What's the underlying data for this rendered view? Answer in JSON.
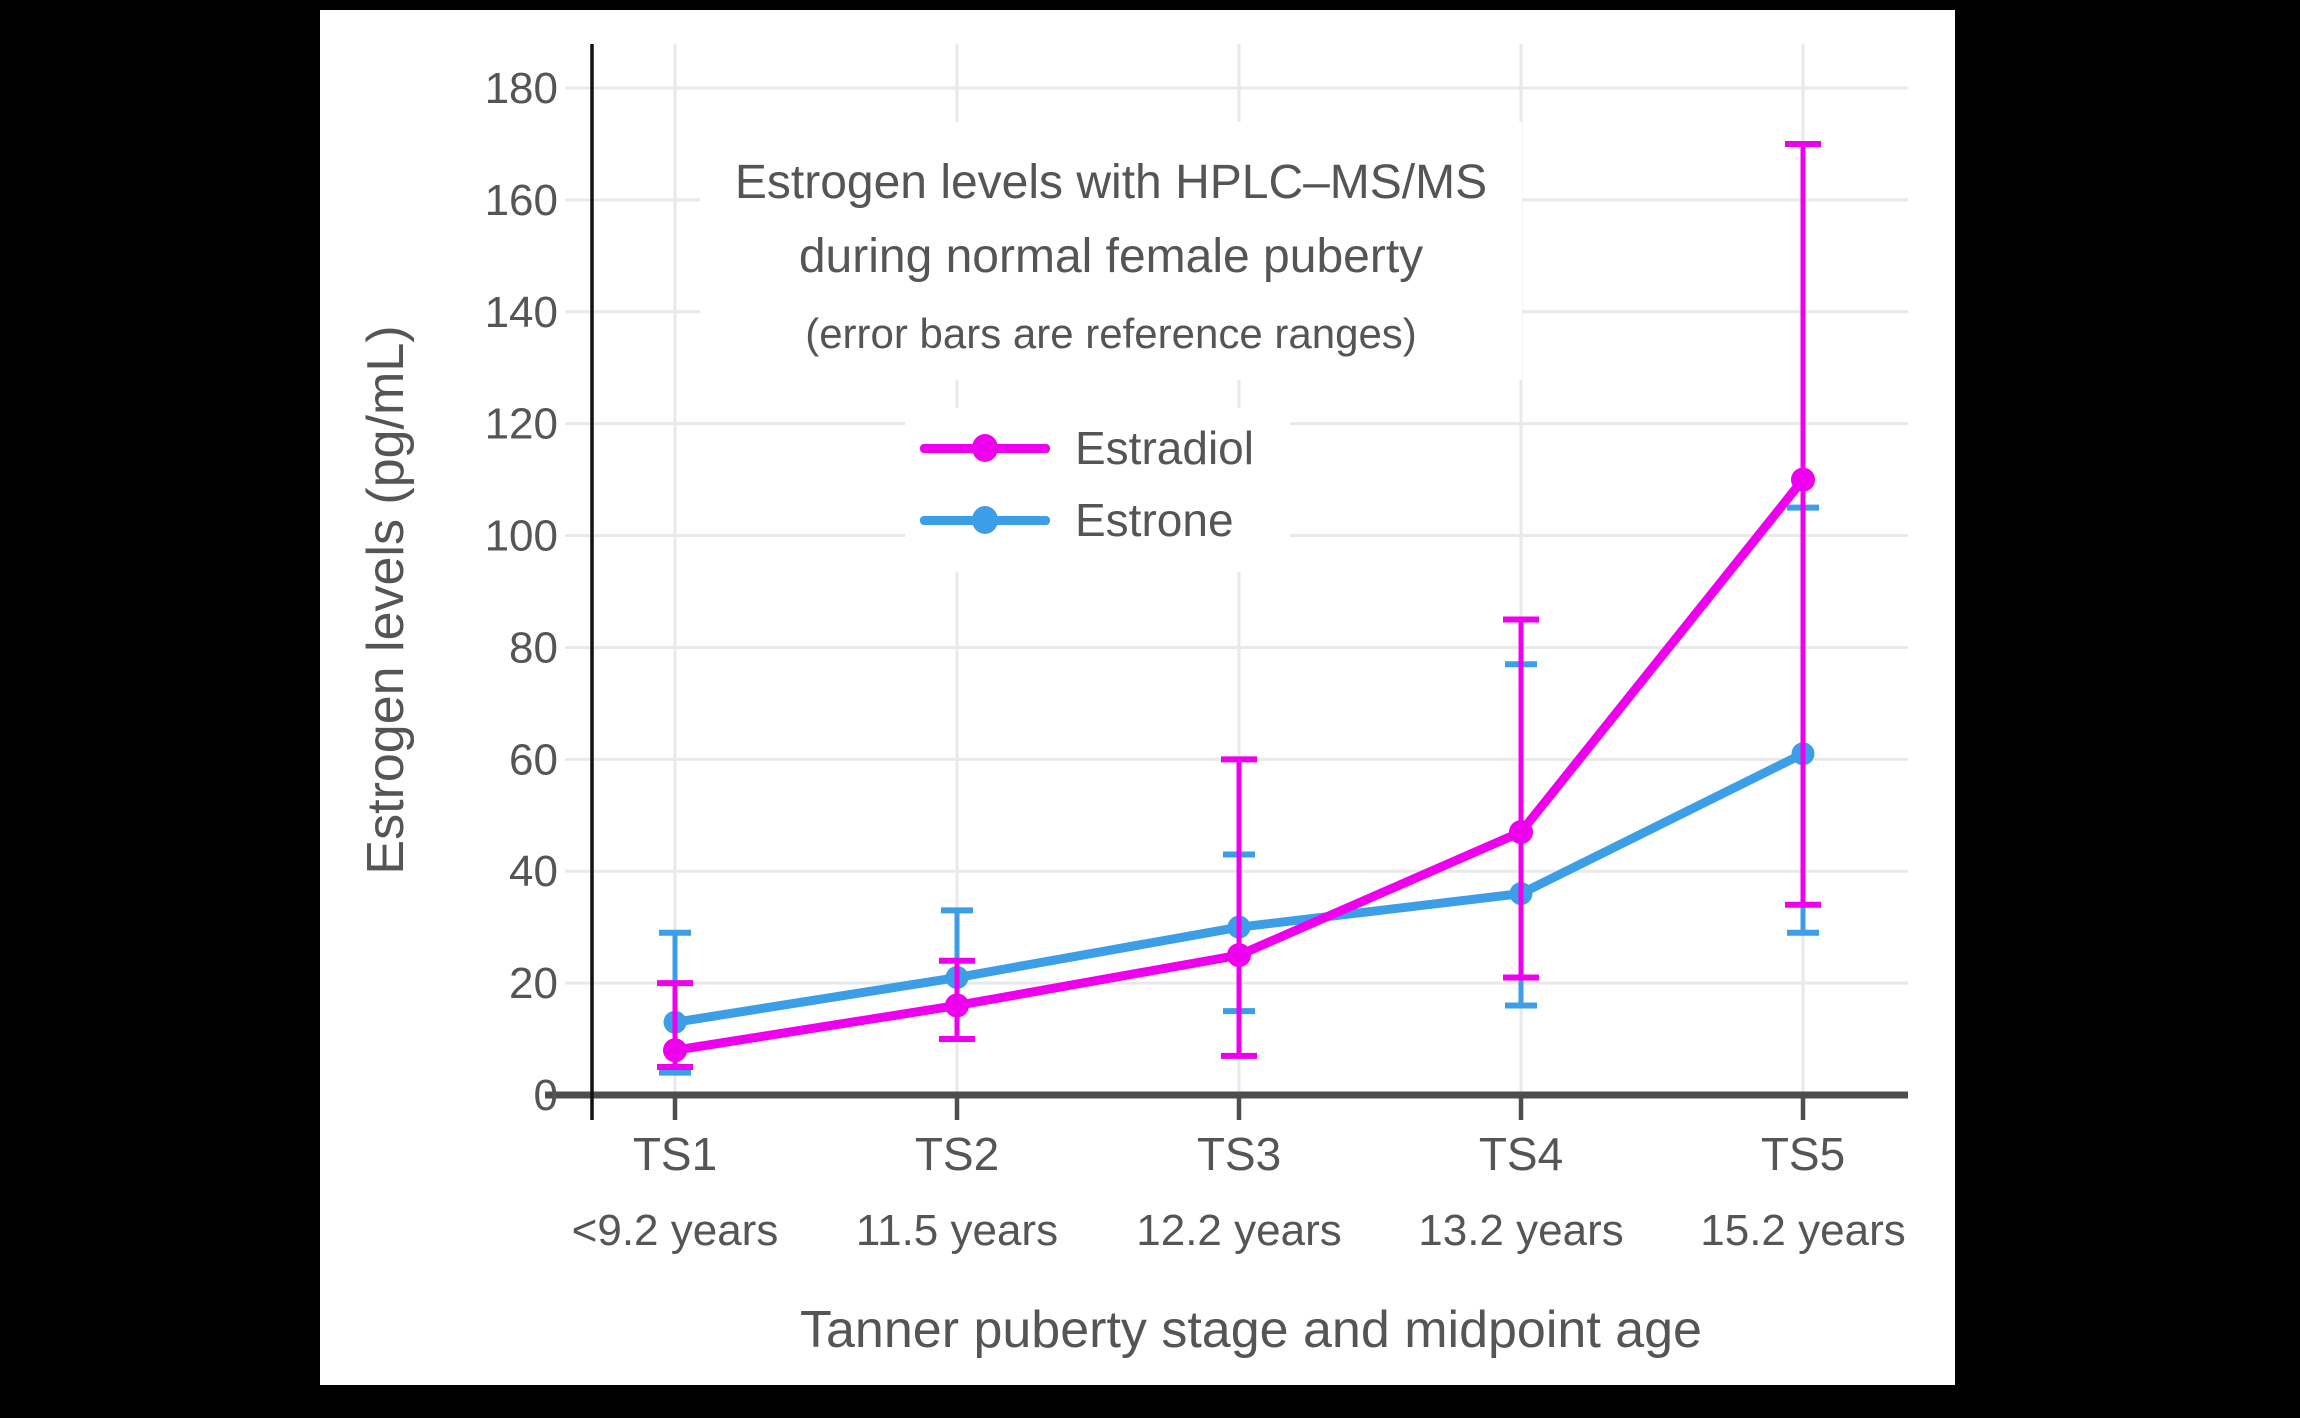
{
  "page": {
    "background": "#000000",
    "panel_background": "#ffffff",
    "text_color": "#555555",
    "gridline_color": "#E9E9E9",
    "x_axis_color": "#4D4D4D",
    "y_axis_color": "#111111"
  },
  "titles": {
    "line1": "Estrogen levels with HPLC–MS/MS",
    "line2": "during normal female puberty",
    "subtitle": "(error bars are reference ranges)",
    "x_axis": "Tanner puberty stage and midpoint age",
    "y_axis": "Estrogen levels (pg/mL)"
  },
  "legend": {
    "position": "upper center",
    "items": [
      {
        "label": "Estradiol",
        "color": "#EE00EE"
      },
      {
        "label": "Estrone",
        "color": "#3C9EE7"
      }
    ]
  },
  "chart_data": {
    "type": "line",
    "categories": [
      "TS1",
      "TS2",
      "TS3",
      "TS4",
      "TS5"
    ],
    "category_sublabels": [
      "<9.2 years",
      "11.5 years",
      "12.2 years",
      "13.2 years",
      "15.2 years"
    ],
    "series": [
      {
        "name": "Estradiol",
        "color": "#EE00EE",
        "values": [
          8,
          16,
          25,
          47,
          110
        ],
        "error_low": [
          5,
          10,
          7,
          21,
          34
        ],
        "error_high": [
          20,
          24,
          60,
          85,
          170
        ]
      },
      {
        "name": "Estrone",
        "color": "#3C9EE7",
        "values": [
          13,
          21,
          30,
          36,
          61
        ],
        "error_low": [
          4,
          10,
          15,
          16,
          29
        ],
        "error_high": [
          29,
          33,
          43,
          77,
          105
        ]
      }
    ],
    "title": "Estrogen levels with HPLC–MS/MS during normal female puberty",
    "subtitle": "(error bars are reference ranges)",
    "xlabel": "Tanner puberty stage and midpoint age",
    "ylabel": "Estrogen levels (pg/mL)",
    "ylim": [
      0,
      190
    ],
    "yticks": [
      0,
      20,
      40,
      60,
      80,
      100,
      120,
      140,
      160,
      180
    ],
    "grid": true,
    "error_bars": "reference ranges",
    "legend_position": "upper center"
  }
}
